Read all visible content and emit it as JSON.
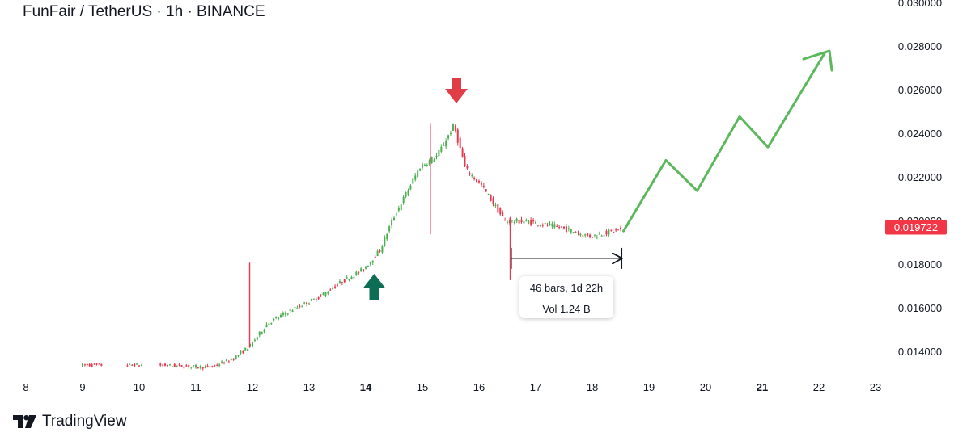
{
  "header": {
    "title": "FunFair / TetherUS · 1h · BINANCE"
  },
  "chart_data": {
    "type": "candlestick",
    "symbol": "FunFair / TetherUS",
    "interval": "1h",
    "exchange": "BINANCE",
    "last_price": "0.019722",
    "y_axis": {
      "ticks": [
        "0.030000",
        "0.028000",
        "0.026000",
        "0.024000",
        "0.022000",
        "0.020000",
        "0.018000",
        "0.016000",
        "0.014000"
      ],
      "ylim": [
        0.0131,
        0.03
      ]
    },
    "x_axis": {
      "ticks": [
        "8",
        "9",
        "10",
        "11",
        "12",
        "13",
        "14",
        "15",
        "16",
        "17",
        "18",
        "19",
        "20",
        "21",
        "22",
        "23"
      ],
      "bold": [
        "14",
        "21"
      ],
      "xlim": [
        8,
        23
      ]
    },
    "price_path": [
      [
        9.0,
        0.0134
      ],
      [
        10.4,
        0.0134
      ],
      [
        11.3,
        0.0133
      ],
      [
        11.7,
        0.0137
      ],
      [
        12.0,
        0.0143
      ],
      [
        12.3,
        0.0153
      ],
      [
        12.7,
        0.0159
      ],
      [
        13.2,
        0.0165
      ],
      [
        13.6,
        0.0172
      ],
      [
        14.0,
        0.0178
      ],
      [
        14.3,
        0.0187
      ],
      [
        14.5,
        0.02
      ],
      [
        14.8,
        0.0215
      ],
      [
        15.0,
        0.0225
      ],
      [
        15.3,
        0.023
      ],
      [
        15.6,
        0.0244
      ],
      [
        15.8,
        0.0224
      ],
      [
        16.1,
        0.0216
      ],
      [
        16.5,
        0.02
      ],
      [
        16.9,
        0.02
      ],
      [
        17.5,
        0.0197
      ],
      [
        18.0,
        0.0193
      ],
      [
        18.5,
        0.0196
      ]
    ],
    "spikes": [
      {
        "x": 11.95,
        "high": 0.0181,
        "low": 0.0142
      },
      {
        "x": 15.14,
        "high": 0.0245,
        "low": 0.0194
      },
      {
        "x": 16.55,
        "high": 0.0202,
        "low": 0.0173
      }
    ],
    "projection": {
      "color": "#5cb85c",
      "points": [
        [
          18.55,
          0.01955
        ],
        [
          19.3,
          0.0228
        ],
        [
          19.85,
          0.0214
        ],
        [
          20.6,
          0.0248
        ],
        [
          21.1,
          0.0234
        ],
        [
          22.1,
          0.0277
        ]
      ]
    },
    "annotations": {
      "down_arrow": {
        "x": 15.6,
        "price": 0.026,
        "color": "#e03d47"
      },
      "up_arrow": {
        "x": 14.15,
        "price": 0.017,
        "color": "#0d6e55"
      },
      "measure": {
        "from": 16.57,
        "to": 18.52,
        "price": 0.0183,
        "bars_text": "46 bars, 1d 22h",
        "vol_text": "Vol 1.24 B"
      }
    },
    "colors": {
      "up": "#4caf50",
      "down": "#e53950",
      "price_tag": "#f23645"
    }
  },
  "footer": {
    "brand": "TradingView"
  }
}
